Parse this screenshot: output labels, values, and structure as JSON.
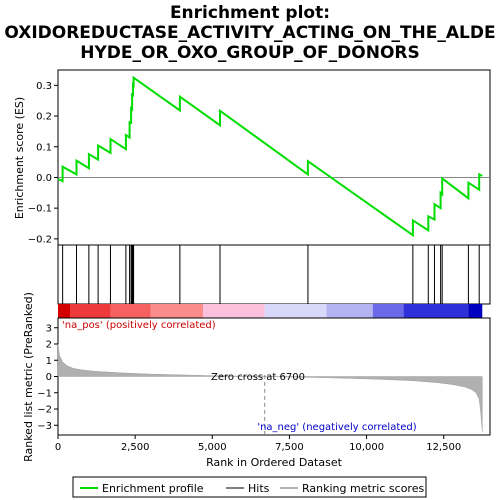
{
  "chart_data": {
    "type": "line",
    "title_lines": [
      "Enrichment plot:",
      "OXIDOREDUCTASE_ACTIVITY_ACTING_ON_THE_ALDE",
      "HYDE_OR_OXO_GROUP_OF_DONORS"
    ],
    "xlabel": "Rank in Ordered Dataset",
    "ylabel_top": "Enrichment score (ES)",
    "ylabel_bottom": "Ranked list metric (PreRanked)",
    "xlim": [
      0,
      14000
    ],
    "es_ylim": [
      -0.22,
      0.35
    ],
    "metric_ylim": [
      -3.6,
      3.6
    ],
    "x_ticks": [
      0,
      2500,
      5000,
      7500,
      10000,
      12500
    ],
    "x_tick_labels": [
      "0",
      "2,500",
      "5,000",
      "7,500",
      "10,000",
      "12,500"
    ],
    "es_ticks": [
      -0.2,
      -0.1,
      0.0,
      0.1,
      0.2,
      0.3
    ],
    "es_tick_labels": [
      "−0.2",
      "−0.1",
      "0.0",
      "0.1",
      "0.2",
      "0.3"
    ],
    "metric_ticks": [
      -3,
      -2,
      -1,
      0,
      1,
      2,
      3
    ],
    "metric_tick_labels": [
      "−3",
      "−2",
      "−1",
      "0",
      "1",
      "2",
      "3"
    ],
    "hits": [
      150,
      600,
      1000,
      1300,
      1700,
      2200,
      2320,
      2370,
      2400,
      2430,
      2450,
      3950,
      5250,
      8100,
      11500,
      12000,
      12200,
      12400,
      12450,
      13300,
      13650
    ],
    "enrichment_profile": {
      "x": [
        0,
        150,
        150,
        600,
        600,
        1000,
        1000,
        1300,
        1300,
        1700,
        1700,
        2200,
        2200,
        2320,
        2320,
        2370,
        2370,
        2400,
        2400,
        2430,
        2430,
        2450,
        2450,
        3950,
        3950,
        5250,
        5250,
        8100,
        8100,
        11500,
        11500,
        12000,
        12000,
        12200,
        12200,
        12400,
        12400,
        12450,
        12450,
        13300,
        13300,
        13650,
        13650,
        13750
      ],
      "y": [
        -0.005,
        -0.012,
        0.035,
        0.01,
        0.055,
        0.03,
        0.076,
        0.058,
        0.104,
        0.08,
        0.125,
        0.092,
        0.138,
        0.13,
        0.18,
        0.178,
        0.225,
        0.222,
        0.27,
        0.268,
        0.302,
        0.3,
        0.325,
        0.218,
        0.263,
        0.17,
        0.217,
        0.01,
        0.053,
        -0.188,
        -0.14,
        -0.172,
        -0.127,
        -0.137,
        -0.087,
        -0.1,
        -0.05,
        -0.055,
        -0.003,
        -0.068,
        -0.017,
        -0.04,
        0.01,
        0.005
      ]
    },
    "metric_curve": {
      "x": [
        0,
        50,
        150,
        300,
        500,
        800,
        1200,
        2000,
        3000,
        4000,
        5000,
        6000,
        6700,
        7500,
        8500,
        9500,
        10500,
        11500,
        12300,
        12800,
        13200,
        13400,
        13550,
        13650,
        13700,
        13750
      ],
      "y": [
        2.0,
        1.3,
        0.9,
        0.65,
        0.5,
        0.4,
        0.32,
        0.23,
        0.15,
        0.1,
        0.05,
        0.02,
        0.0,
        -0.03,
        -0.07,
        -0.12,
        -0.18,
        -0.26,
        -0.38,
        -0.5,
        -0.65,
        -0.8,
        -1.0,
        -1.4,
        -2.2,
        -3.4
      ]
    },
    "zero_cross_rank": 6700,
    "zero_cross_label": "Zero cross at 6700",
    "pos_label": "'na_pos' (positively correlated)",
    "neg_label": "'na_neg' (negatively correlated)",
    "legend": [
      "Enrichment profile",
      "Hits",
      "Ranking metric scores"
    ],
    "colors": {
      "profile": "#00dd00",
      "hits": "#000000",
      "metric": "#b0b0b0",
      "pos_text": "#cc0000",
      "neg_text": "#0000cc",
      "zero_line": "#888888",
      "heat_pos_strong": "#d40000",
      "heat_pos_weak": "#ffc8dc",
      "heat_neg_weak": "#d8d8ff",
      "heat_neg_strong": "#0000c0"
    }
  }
}
